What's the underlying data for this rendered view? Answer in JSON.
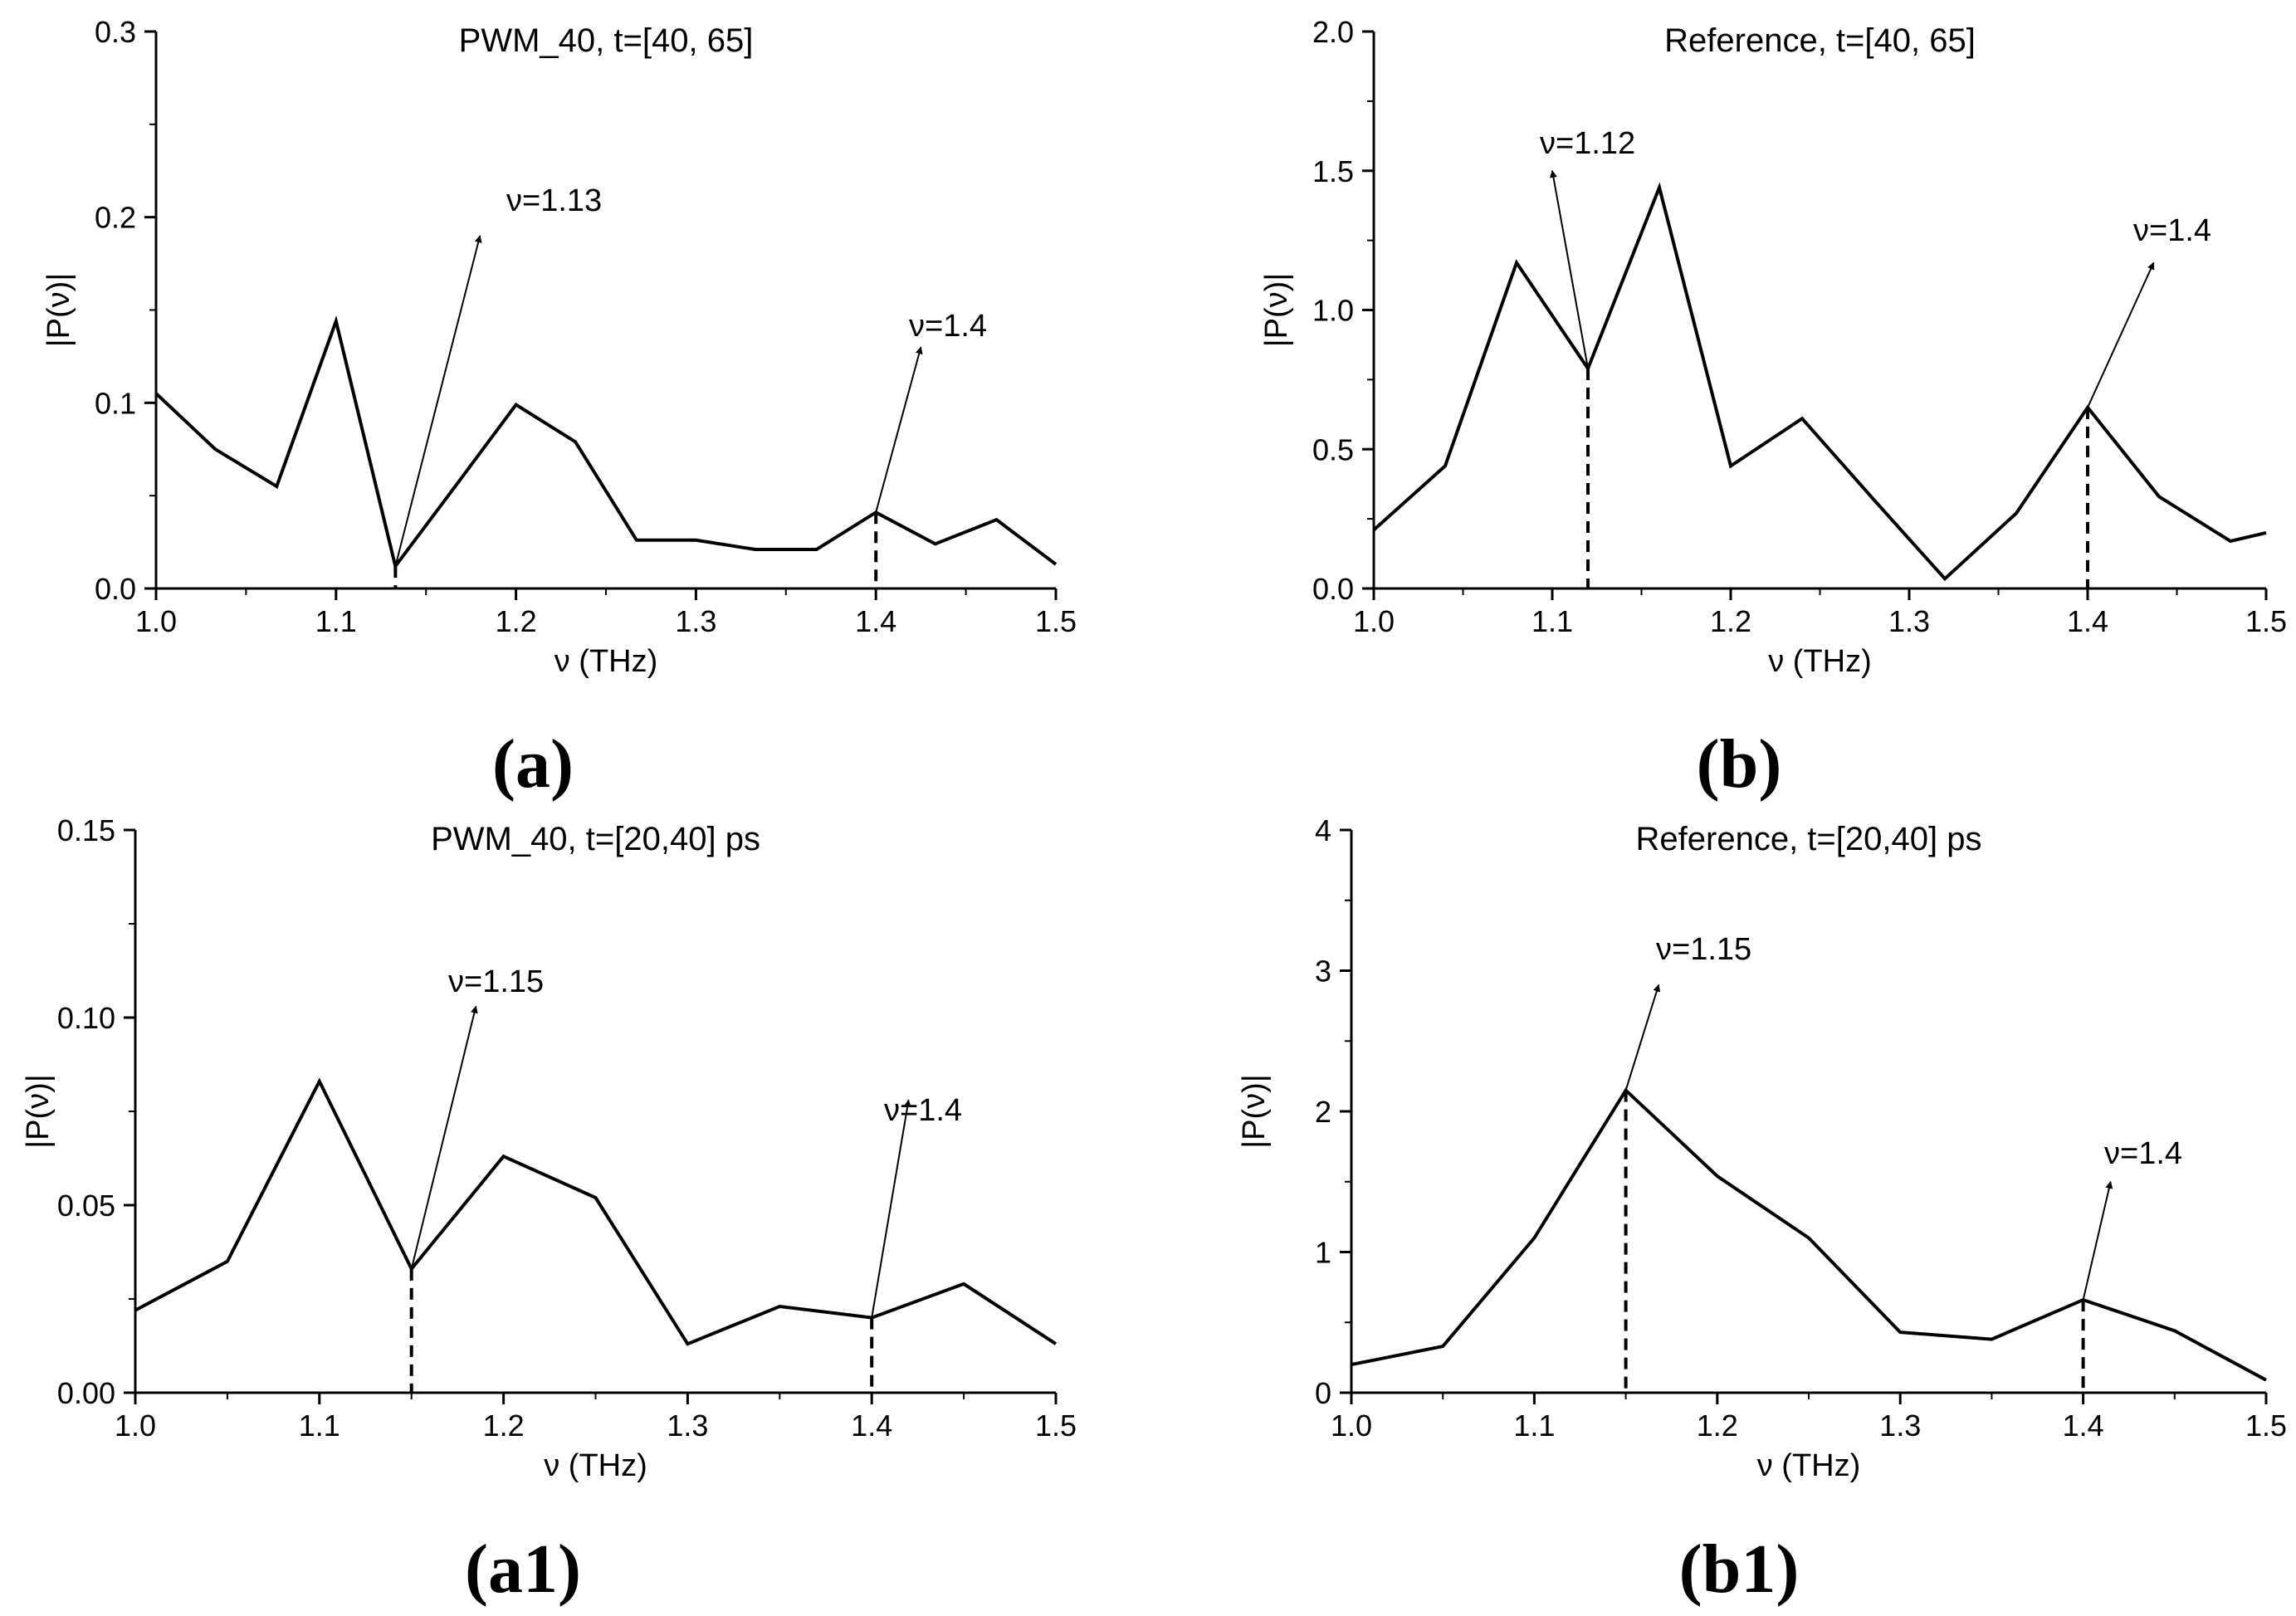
{
  "chart_data": [
    {
      "id": "a",
      "type": "line",
      "title": "PWM_40, t=[40, 65]",
      "xlabel": "ν (THz)",
      "ylabel": "|P(ν)|",
      "panel_label": "(a)",
      "xlim": [
        1.0,
        1.5
      ],
      "ylim": [
        0,
        0.3
      ],
      "xticks": [
        "1.0",
        "1.1",
        "1.2",
        "1.3",
        "1.4",
        "1.5"
      ],
      "xtick_values": [
        1.0,
        1.1,
        1.2,
        1.3,
        1.4,
        1.5
      ],
      "yticks": [
        "0.0",
        "0.1",
        "0.2",
        "0.3"
      ],
      "ytick_values": [
        0,
        0.1,
        0.2,
        0.3
      ],
      "series": [
        {
          "name": "|P(ν)|",
          "x": [
            1.0,
            1.033,
            1.067,
            1.1,
            1.133,
            1.167,
            1.2,
            1.233,
            1.267,
            1.3,
            1.333,
            1.367,
            1.4,
            1.433,
            1.467,
            1.5
          ],
          "y": [
            0.105,
            0.075,
            0.055,
            0.144,
            0.012,
            0.056,
            0.099,
            0.079,
            0.026,
            0.026,
            0.021,
            0.021,
            0.041,
            0.024,
            0.037,
            0.013
          ]
        }
      ],
      "annotations": [
        {
          "text": "ν=1.13",
          "x": 1.133,
          "y": 0.012,
          "tip_x": 1.18,
          "tip_y": 0.19
        },
        {
          "text": "ν=1.4",
          "x": 1.4,
          "y": 0.041,
          "tip_x": 1.425,
          "tip_y": 0.13
        }
      ]
    },
    {
      "id": "b",
      "type": "line",
      "title": "Reference, t=[40, 65]",
      "xlabel": "ν (THz)",
      "ylabel": "|P(ν)|",
      "panel_label": "(b)",
      "xlim": [
        1.0,
        1.5
      ],
      "ylim": [
        0,
        2.0
      ],
      "xticks": [
        "1.0",
        "1.1",
        "1.2",
        "1.3",
        "1.4",
        "1.5"
      ],
      "xtick_values": [
        1.0,
        1.1,
        1.2,
        1.3,
        1.4,
        1.5
      ],
      "yticks": [
        "0.0",
        "0.5",
        "1.0",
        "1.5",
        "2.0"
      ],
      "ytick_values": [
        0,
        0.5,
        1.0,
        1.5,
        2.0
      ],
      "series": [
        {
          "name": "|P(ν)|",
          "x": [
            1.0,
            1.04,
            1.08,
            1.12,
            1.16,
            1.2,
            1.24,
            1.28,
            1.32,
            1.36,
            1.4,
            1.44,
            1.48,
            1.5
          ],
          "y": [
            0.21,
            0.44,
            1.17,
            0.79,
            1.44,
            0.44,
            0.61,
            0.32,
            0.035,
            0.27,
            0.65,
            0.33,
            0.17,
            0.2
          ]
        }
      ],
      "annotations": [
        {
          "text": "ν=1.12",
          "x": 1.12,
          "y": 0.79,
          "tip_x": 1.1,
          "tip_y": 1.5
        },
        {
          "text": "ν=1.4",
          "x": 1.4,
          "y": 0.65,
          "tip_x": 1.437,
          "tip_y": 1.17
        }
      ]
    },
    {
      "id": "a1",
      "type": "line",
      "title": "PWM_40, t=[20,40] ps",
      "xlabel": "ν (THz)",
      "ylabel": "|P(ν)|",
      "panel_label": "(a1)",
      "xlim": [
        1.0,
        1.5
      ],
      "ylim": [
        0,
        0.15
      ],
      "xticks": [
        "1.0",
        "1.1",
        "1.2",
        "1.3",
        "1.4",
        "1.5"
      ],
      "xtick_values": [
        1.0,
        1.1,
        1.2,
        1.3,
        1.4,
        1.5
      ],
      "yticks": [
        "0.00",
        "0.05",
        "0.10",
        "0.15"
      ],
      "ytick_values": [
        0,
        0.05,
        0.1,
        0.15
      ],
      "series": [
        {
          "name": "|P(ν)|",
          "x": [
            1.0,
            1.05,
            1.1,
            1.15,
            1.2,
            1.25,
            1.3,
            1.35,
            1.4,
            1.45,
            1.5
          ],
          "y": [
            0.022,
            0.035,
            0.083,
            0.033,
            0.063,
            0.052,
            0.013,
            0.023,
            0.02,
            0.029,
            0.013
          ]
        }
      ],
      "annotations": [
        {
          "text": "ν=1.15",
          "x": 1.15,
          "y": 0.033,
          "tip_x": 1.185,
          "tip_y": 0.103
        },
        {
          "text": "ν=1.4",
          "x": 1.4,
          "y": 0.02,
          "tip_x": 1.42,
          "tip_y": 0.078
        }
      ]
    },
    {
      "id": "b1",
      "type": "line",
      "title": "Reference, t=[20,40] ps",
      "xlabel": "ν (THz)",
      "ylabel": "|P(ν)|",
      "panel_label": "(b1)",
      "xlim": [
        1.0,
        1.5
      ],
      "ylim": [
        0,
        4
      ],
      "xticks": [
        "1.0",
        "1.1",
        "1.2",
        "1.3",
        "1.4",
        "1.5"
      ],
      "xtick_values": [
        1.0,
        1.1,
        1.2,
        1.3,
        1.4,
        1.5
      ],
      "yticks": [
        "0",
        "1",
        "2",
        "3",
        "4"
      ],
      "ytick_values": [
        0,
        1,
        2,
        3,
        4
      ],
      "series": [
        {
          "name": "|P(ν)|",
          "x": [
            1.0,
            1.05,
            1.1,
            1.15,
            1.2,
            1.25,
            1.3,
            1.35,
            1.4,
            1.45,
            1.5
          ],
          "y": [
            0.2,
            0.33,
            1.1,
            2.15,
            1.54,
            1.1,
            0.43,
            0.38,
            0.66,
            0.44,
            0.09
          ]
        }
      ],
      "annotations": [
        {
          "text": "ν=1.15",
          "x": 1.15,
          "y": 2.15,
          "tip_x": 1.168,
          "tip_y": 2.9
        },
        {
          "text": "ν=1.4",
          "x": 1.4,
          "y": 0.66,
          "tip_x": 1.415,
          "tip_y": 1.5
        }
      ]
    }
  ]
}
